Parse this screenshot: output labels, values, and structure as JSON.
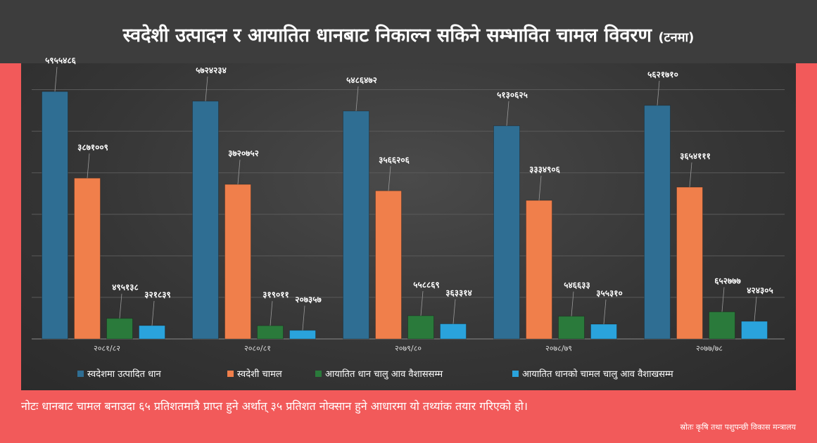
{
  "header": {
    "title": "स्वदेशी उत्पादन र आयातित धानबाट निकाल्न सकिने सम्भावित चामल विवरण",
    "unit": "(टनमा)"
  },
  "chart_data": {
    "type": "bar",
    "categories": [
      "२०८१/८२",
      "२०८०/८१",
      "२०७९/८०",
      "२०७८/७९",
      "२०७७/७८"
    ],
    "series": [
      {
        "name": "स्वदेशमा उत्पादित धान",
        "values": [
          5955486,
          5724234,
          5486472,
          5130625,
          5621710
        ],
        "labels": [
          "५९५५४८६",
          "५७२४२३४",
          "५४८६४७२",
          "५१३०६२५",
          "५६२१७१०"
        ]
      },
      {
        "name": "स्वदेशी चामल",
        "values": [
          3871009,
          3720752,
          3566206,
          3334906,
          3654111
        ],
        "labels": [
          "३८७१००९",
          "३७२०७५२",
          "३५६६२०६",
          "३३३४९०६",
          "३६५४१११"
        ]
      },
      {
        "name": "आयातित धान चालु आव वैशाससम्म",
        "values": [
          495138,
          319011,
          558869,
          546633,
          652777
        ],
        "labels": [
          "४९५१३८",
          "३१९०११",
          "५५८८६९",
          "५४६६३३",
          "६५२७७७"
        ]
      },
      {
        "name": "आयातित धानको चामल चालु आव वैशाखसम्म",
        "values": [
          321839,
          207357,
          363314,
          355310,
          424305
        ],
        "labels": [
          "३२१८३९",
          "२०७३५७",
          "३६३३१४",
          "३५५३१०",
          "४२४३०५"
        ]
      }
    ],
    "colors": [
      "#2f6e93",
      "#f07f4b",
      "#2a7a3b",
      "#2aa3dc"
    ],
    "ylim": [
      0,
      6500000
    ],
    "grid": true,
    "legend": "bottom"
  },
  "footer": {
    "note": "नोटः धानबाट चामल बनाउदा ६५ प्रतिशतमात्रै प्राप्त हुने अर्थात् ३५ प्रतिशत नोक्सान हुने आधारमा यो तथ्यांक तयार गरिएको हो।",
    "source": "स्रोतः कृषि तथा पशुपन्छी विकास मन्त्रालय"
  }
}
